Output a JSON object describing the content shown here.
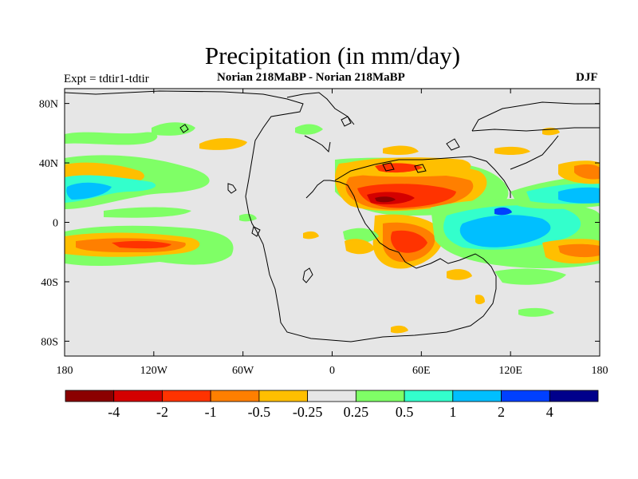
{
  "title": "Precipitation (in mm/day)",
  "subtitle_left": "Expt = tdtir1-tdtir",
  "subtitle_center": "Norian   218MaBP - Norian   218MaBP",
  "subtitle_right": "DJF",
  "map": {
    "lon_range": [
      -180,
      180
    ],
    "lat_range": [
      -90,
      90
    ],
    "background_color": "#e6e6e6",
    "x_ticks": [
      {
        "value": -180,
        "label": "180"
      },
      {
        "value": -120,
        "label": "120W"
      },
      {
        "value": -60,
        "label": "60W"
      },
      {
        "value": 0,
        "label": "0"
      },
      {
        "value": 60,
        "label": "60E"
      },
      {
        "value": 120,
        "label": "120E"
      },
      {
        "value": 180,
        "label": "180"
      }
    ],
    "y_ticks": [
      {
        "value": 80,
        "label": "80N"
      },
      {
        "value": 40,
        "label": "40N"
      },
      {
        "value": 0,
        "label": "0"
      },
      {
        "value": -40,
        "label": "40S"
      },
      {
        "value": -80,
        "label": "80S"
      }
    ]
  },
  "colorbar": {
    "colors": [
      "#8b0000",
      "#d40000",
      "#ff3300",
      "#ff7f00",
      "#ffbf00",
      "#e6e6e6",
      "#7fff66",
      "#33ffcc",
      "#00bfff",
      "#0040ff",
      "#00008b"
    ],
    "labels": [
      "-4",
      "-2",
      "-1",
      "-0.5",
      "-0.25",
      "0.25",
      "0.5",
      "1",
      "2",
      "4"
    ]
  }
}
